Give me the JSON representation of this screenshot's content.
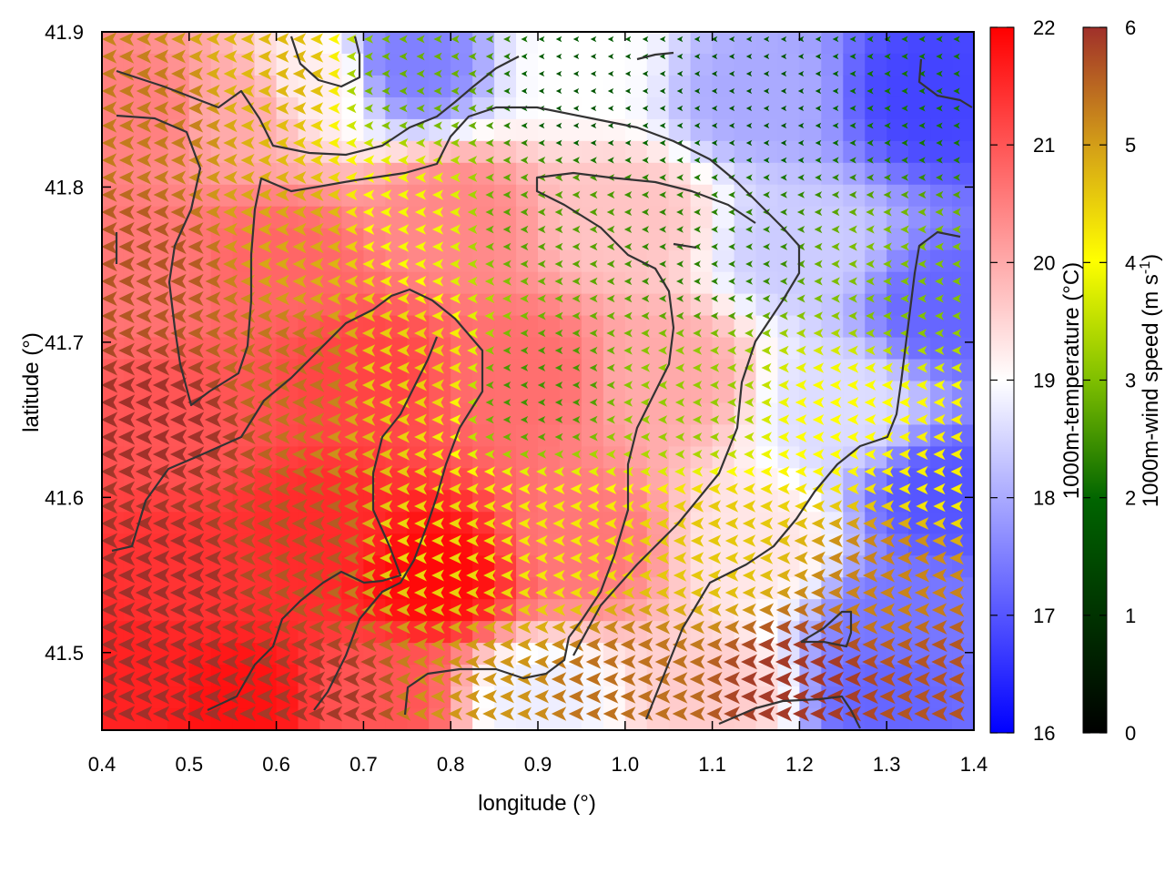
{
  "chart_data": {
    "type": "heatmap",
    "xlabel": "longitude (°)",
    "ylabel": "latitude (°)",
    "xlim": [
      0.4,
      1.4
    ],
    "ylim": [
      41.45,
      41.9
    ],
    "x_ticks": [
      "0.4",
      "0.5",
      "0.6",
      "0.7",
      "0.8",
      "0.9",
      "1.0",
      "1.1",
      "1.2",
      "1.3",
      "1.4"
    ],
    "y_ticks": [
      "41.5",
      "41.6",
      "41.7",
      "41.8",
      "41.9"
    ],
    "temperature_colorbar": {
      "label": "1000m-temperature (°C)",
      "range": [
        16,
        22
      ],
      "ticks": [
        "16",
        "17",
        "18",
        "19",
        "20",
        "21",
        "22"
      ],
      "colors": [
        "#0000ff",
        "#ffffff",
        "#ff0000"
      ]
    },
    "wind_colorbar": {
      "label_main": "1000m-wind speed (m s",
      "label_sup": "-1",
      "label_end": ")",
      "range": [
        0,
        6
      ],
      "ticks": [
        "0",
        "1",
        "2",
        "3",
        "4",
        "5",
        "6"
      ],
      "colors": [
        "#000000",
        "#006400",
        "#7fbf00",
        "#ffff00",
        "#d4a017",
        "#a0302a"
      ]
    },
    "temperature_field": [
      {
        "x": 0.45,
        "y": 41.85,
        "t": 20.5
      },
      {
        "x": 0.55,
        "y": 41.85,
        "t": 20.0
      },
      {
        "x": 0.65,
        "y": 41.87,
        "t": 19.2
      },
      {
        "x": 0.75,
        "y": 41.88,
        "t": 17.5
      },
      {
        "x": 0.95,
        "y": 41.88,
        "t": 19.0
      },
      {
        "x": 1.15,
        "y": 41.86,
        "t": 18.0
      },
      {
        "x": 1.35,
        "y": 41.86,
        "t": 16.8
      },
      {
        "x": 0.45,
        "y": 41.75,
        "t": 20.6
      },
      {
        "x": 0.6,
        "y": 41.75,
        "t": 20.8
      },
      {
        "x": 0.8,
        "y": 41.78,
        "t": 20.4
      },
      {
        "x": 1.0,
        "y": 41.78,
        "t": 19.7
      },
      {
        "x": 1.2,
        "y": 41.76,
        "t": 18.4
      },
      {
        "x": 1.37,
        "y": 41.72,
        "t": 17.2
      },
      {
        "x": 0.5,
        "y": 41.65,
        "t": 21.0
      },
      {
        "x": 0.7,
        "y": 41.68,
        "t": 21.2
      },
      {
        "x": 0.88,
        "y": 41.68,
        "t": 20.7
      },
      {
        "x": 1.05,
        "y": 41.68,
        "t": 20.0
      },
      {
        "x": 1.25,
        "y": 41.66,
        "t": 18.6
      },
      {
        "x": 1.37,
        "y": 41.6,
        "t": 17.0
      },
      {
        "x": 0.5,
        "y": 41.55,
        "t": 21.4
      },
      {
        "x": 0.65,
        "y": 41.58,
        "t": 21.5
      },
      {
        "x": 0.78,
        "y": 41.55,
        "t": 21.9
      },
      {
        "x": 0.95,
        "y": 41.57,
        "t": 20.6
      },
      {
        "x": 1.15,
        "y": 41.57,
        "t": 19.3
      },
      {
        "x": 1.32,
        "y": 41.52,
        "t": 17.4
      },
      {
        "x": 0.45,
        "y": 41.48,
        "t": 21.6
      },
      {
        "x": 0.55,
        "y": 41.47,
        "t": 21.8
      },
      {
        "x": 0.72,
        "y": 41.47,
        "t": 21.0
      },
      {
        "x": 0.9,
        "y": 41.47,
        "t": 18.8
      },
      {
        "x": 1.1,
        "y": 41.47,
        "t": 19.6
      },
      {
        "x": 1.3,
        "y": 41.47,
        "t": 17.2
      }
    ],
    "wind_field": [
      {
        "x": 0.45,
        "y": 41.85,
        "s": 5.2
      },
      {
        "x": 0.6,
        "y": 41.87,
        "s": 4.5
      },
      {
        "x": 0.75,
        "y": 41.87,
        "s": 2.2
      },
      {
        "x": 0.95,
        "y": 41.86,
        "s": 1.0
      },
      {
        "x": 1.15,
        "y": 41.86,
        "s": 1.0
      },
      {
        "x": 1.35,
        "y": 41.86,
        "s": 1.4
      },
      {
        "x": 0.45,
        "y": 41.75,
        "s": 5.6
      },
      {
        "x": 0.62,
        "y": 41.77,
        "s": 4.7
      },
      {
        "x": 0.75,
        "y": 41.78,
        "s": 3.5
      },
      {
        "x": 0.9,
        "y": 41.78,
        "s": 2.0
      },
      {
        "x": 1.1,
        "y": 41.76,
        "s": 1.6
      },
      {
        "x": 1.32,
        "y": 41.74,
        "s": 2.4
      },
      {
        "x": 0.47,
        "y": 41.65,
        "s": 6.0
      },
      {
        "x": 0.62,
        "y": 41.68,
        "s": 5.3
      },
      {
        "x": 0.75,
        "y": 41.68,
        "s": 4.2
      },
      {
        "x": 0.9,
        "y": 41.67,
        "s": 1.8
      },
      {
        "x": 1.07,
        "y": 41.66,
        "s": 2.6
      },
      {
        "x": 1.25,
        "y": 41.65,
        "s": 3.6
      },
      {
        "x": 1.37,
        "y": 41.62,
        "s": 3.8
      },
      {
        "x": 0.47,
        "y": 41.55,
        "s": 6.0
      },
      {
        "x": 0.63,
        "y": 41.57,
        "s": 5.6
      },
      {
        "x": 0.77,
        "y": 41.57,
        "s": 4.1
      },
      {
        "x": 0.92,
        "y": 41.57,
        "s": 3.9
      },
      {
        "x": 1.1,
        "y": 41.57,
        "s": 4.3
      },
      {
        "x": 1.3,
        "y": 41.55,
        "s": 5.1
      },
      {
        "x": 0.47,
        "y": 41.48,
        "s": 6.0
      },
      {
        "x": 0.65,
        "y": 41.47,
        "s": 5.9
      },
      {
        "x": 0.82,
        "y": 41.47,
        "s": 4.9
      },
      {
        "x": 1.0,
        "y": 41.48,
        "s": 5.3
      },
      {
        "x": 1.2,
        "y": 41.48,
        "s": 5.9
      },
      {
        "x": 1.37,
        "y": 41.48,
        "s": 5.6
      }
    ]
  }
}
